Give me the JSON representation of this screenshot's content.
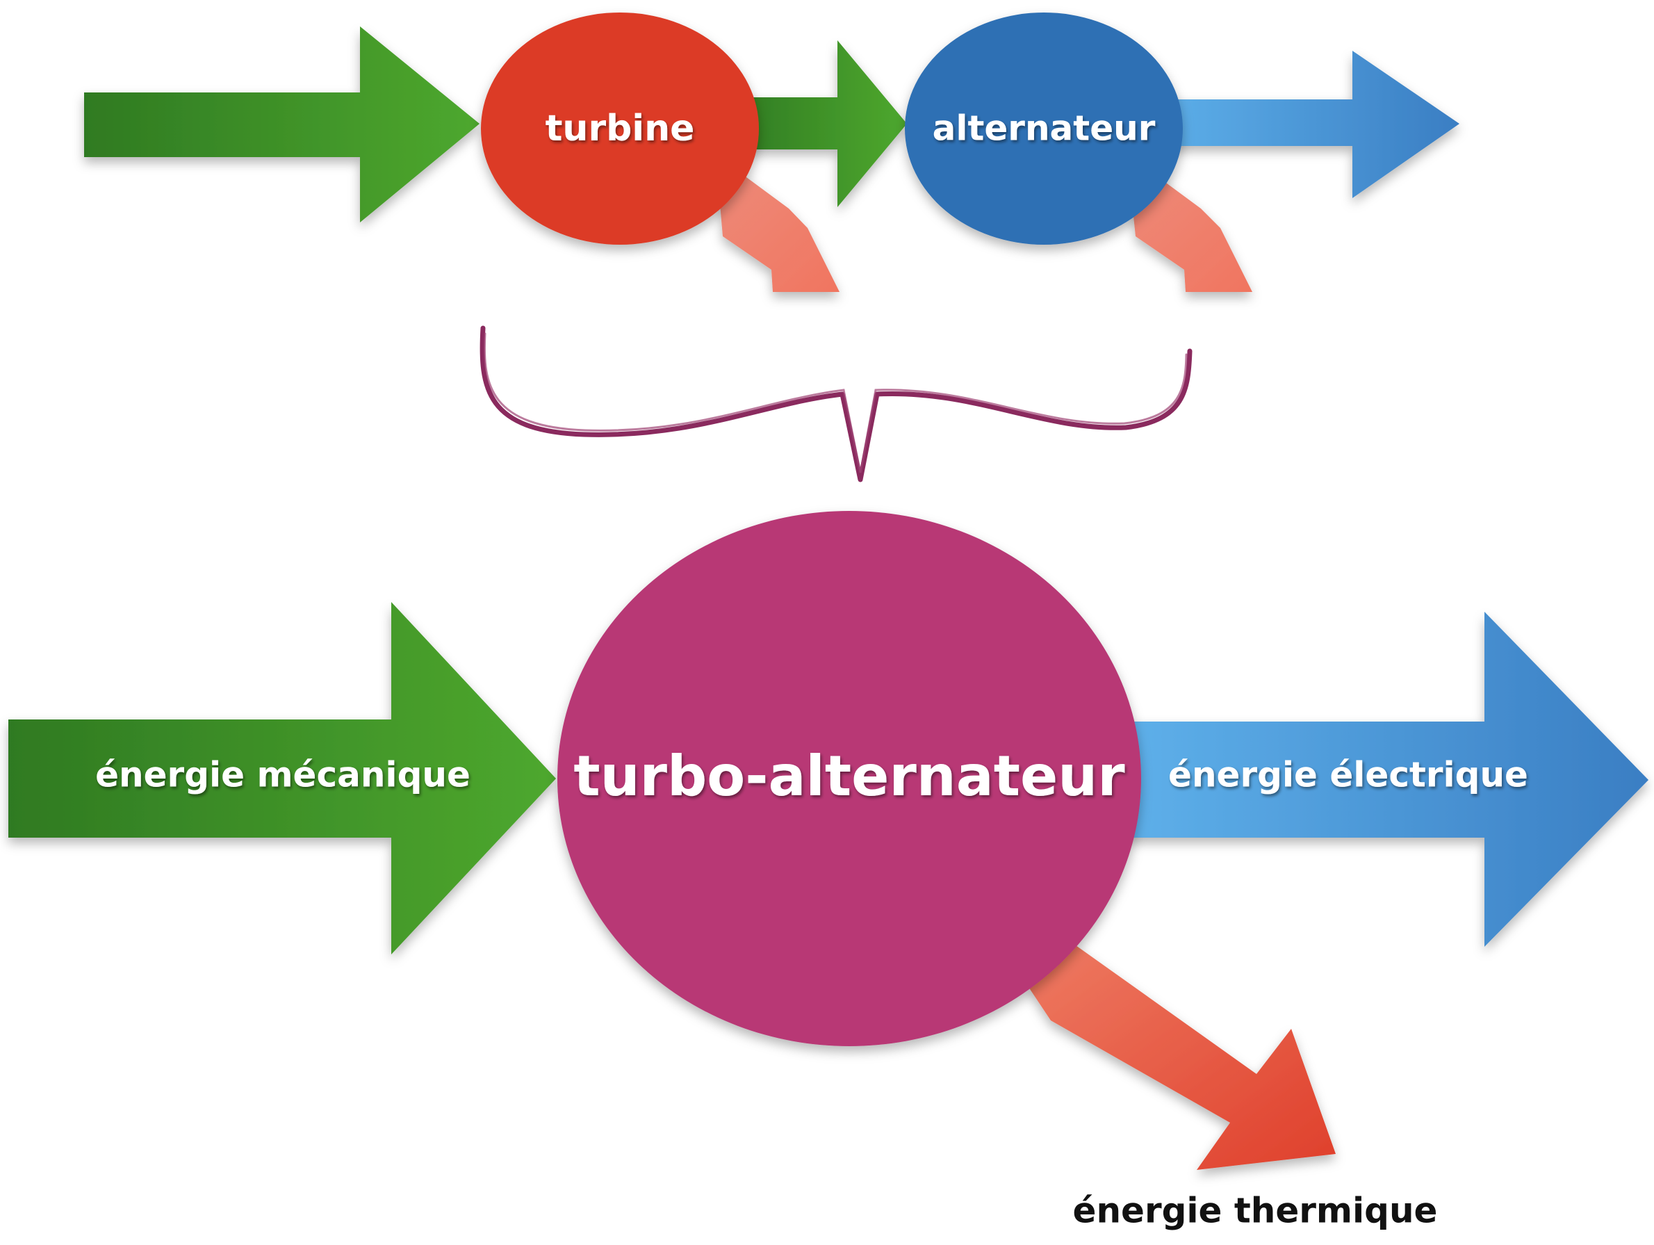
{
  "top_row": {
    "turbine_label": "turbine",
    "alternateur_label": "alternateur"
  },
  "bottom_row": {
    "main_label": "turbo-alternateur",
    "input_label": "énergie mécanique",
    "output_label": "énergie électrique",
    "loss_label": "énergie thermique"
  },
  "colors": {
    "green_dark": "#2f7a22",
    "green_light": "#4ea82e",
    "red_node": "#dc3b26",
    "blue_node": "#2f6fb4",
    "blue_light": "#5daee8",
    "blue_dark": "#3a7fc4",
    "salmon": "#f08a78",
    "loss_red": "#e0432e",
    "magenta_node": "#b83875",
    "brace": "#8a2a5e"
  }
}
